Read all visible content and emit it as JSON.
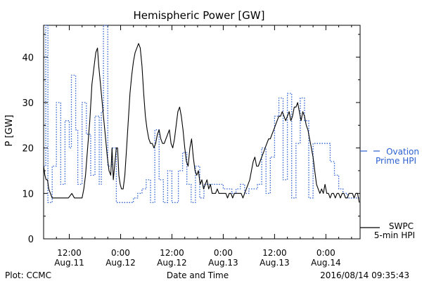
{
  "chart_data": {
    "type": "line",
    "title": "Hemispheric Power [GW]",
    "xlabel": "Date and Time",
    "ylabel": "P [GW]",
    "ylim": [
      0,
      47
    ],
    "yticks": [
      0,
      10,
      20,
      30,
      40
    ],
    "xlim_hours_label": "2016-08-11 06:00 to 2016-08-14 09:35",
    "xticks": [
      {
        "t": 12,
        "time": "12:00",
        "date": "Aug.11"
      },
      {
        "t": 24,
        "time": "0:00",
        "date": "Aug.12"
      },
      {
        "t": 36,
        "time": "12:00",
        "date": "Aug.12"
      },
      {
        "t": 48,
        "time": "0:00",
        "date": "Aug.13"
      },
      {
        "t": 60,
        "time": "12:00",
        "date": "Aug.13"
      },
      {
        "t": 72,
        "time": "0:00",
        "date": "Aug.14"
      }
    ],
    "series": [
      {
        "name": "SWPC 5-min HPI",
        "style": "solid",
        "color": "#000000",
        "points": [
          [
            6.0,
            16
          ],
          [
            6.3,
            14
          ],
          [
            6.6,
            13
          ],
          [
            6.9,
            13
          ],
          [
            7.2,
            11
          ],
          [
            7.6,
            10
          ],
          [
            8.0,
            9
          ],
          [
            8.8,
            9
          ],
          [
            9.8,
            9
          ],
          [
            10.8,
            9
          ],
          [
            11.8,
            9
          ],
          [
            12.6,
            10
          ],
          [
            13.2,
            9
          ],
          [
            13.8,
            9
          ],
          [
            14.6,
            9
          ],
          [
            15.0,
            9
          ],
          [
            15.4,
            11
          ],
          [
            15.8,
            14
          ],
          [
            16.3,
            20
          ],
          [
            16.8,
            26
          ],
          [
            17.3,
            34
          ],
          [
            17.8,
            38
          ],
          [
            18.2,
            41
          ],
          [
            18.6,
            42
          ],
          [
            18.9,
            38
          ],
          [
            19.3,
            34
          ],
          [
            19.7,
            30
          ],
          [
            20.1,
            26
          ],
          [
            20.5,
            22
          ],
          [
            20.9,
            18
          ],
          [
            21.3,
            15
          ],
          [
            21.7,
            14
          ],
          [
            22.0,
            20
          ],
          [
            22.3,
            13
          ],
          [
            22.6,
            16
          ],
          [
            23.0,
            20
          ],
          [
            23.3,
            20
          ],
          [
            23.6,
            14
          ],
          [
            23.9,
            12
          ],
          [
            24.2,
            11
          ],
          [
            24.6,
            11
          ],
          [
            25.0,
            14
          ],
          [
            25.4,
            20
          ],
          [
            25.8,
            26
          ],
          [
            26.2,
            32
          ],
          [
            26.6,
            36
          ],
          [
            27.0,
            39
          ],
          [
            27.4,
            41
          ],
          [
            27.8,
            42
          ],
          [
            28.2,
            43
          ],
          [
            28.6,
            42
          ],
          [
            29.0,
            38
          ],
          [
            29.4,
            32
          ],
          [
            29.8,
            27
          ],
          [
            30.2,
            24
          ],
          [
            30.6,
            22
          ],
          [
            31.0,
            21
          ],
          [
            31.4,
            21
          ],
          [
            31.8,
            20
          ],
          [
            32.2,
            21
          ],
          [
            32.6,
            23
          ],
          [
            33.0,
            24
          ],
          [
            33.4,
            22
          ],
          [
            33.8,
            21
          ],
          [
            34.2,
            21
          ],
          [
            34.6,
            22
          ],
          [
            35.0,
            23
          ],
          [
            35.4,
            24
          ],
          [
            35.8,
            21
          ],
          [
            36.2,
            20
          ],
          [
            36.6,
            22
          ],
          [
            37.0,
            25
          ],
          [
            37.4,
            28
          ],
          [
            37.8,
            29
          ],
          [
            38.2,
            27
          ],
          [
            38.6,
            24
          ],
          [
            39.0,
            20
          ],
          [
            39.4,
            17
          ],
          [
            39.8,
            16
          ],
          [
            40.2,
            20
          ],
          [
            40.6,
            22
          ],
          [
            41.0,
            18
          ],
          [
            41.4,
            15
          ],
          [
            41.8,
            14
          ],
          [
            42.2,
            15
          ],
          [
            42.6,
            12
          ],
          [
            43.0,
            13
          ],
          [
            43.4,
            11
          ],
          [
            43.8,
            12
          ],
          [
            44.2,
            13
          ],
          [
            44.6,
            11
          ],
          [
            45.0,
            12
          ],
          [
            45.4,
            10
          ],
          [
            45.8,
            10
          ],
          [
            46.2,
            10
          ],
          [
            46.6,
            11
          ],
          [
            47.0,
            10
          ],
          [
            47.4,
            10
          ],
          [
            47.8,
            10
          ],
          [
            48.2,
            10
          ],
          [
            48.6,
            10
          ],
          [
            49.0,
            9
          ],
          [
            49.4,
            10
          ],
          [
            49.8,
            10
          ],
          [
            50.2,
            9
          ],
          [
            50.6,
            10
          ],
          [
            51.0,
            10
          ],
          [
            51.4,
            10
          ],
          [
            51.8,
            10
          ],
          [
            52.2,
            10
          ],
          [
            52.6,
            9
          ],
          [
            53.0,
            10
          ],
          [
            53.4,
            11
          ],
          [
            53.8,
            12
          ],
          [
            54.2,
            13
          ],
          [
            54.6,
            15
          ],
          [
            55.0,
            17
          ],
          [
            55.4,
            18
          ],
          [
            55.8,
            16
          ],
          [
            56.2,
            16
          ],
          [
            56.6,
            17
          ],
          [
            57.0,
            18
          ],
          [
            57.4,
            19
          ],
          [
            57.8,
            20
          ],
          [
            58.2,
            21
          ],
          [
            58.6,
            22
          ],
          [
            59.0,
            22
          ],
          [
            59.4,
            23
          ],
          [
            59.8,
            24
          ],
          [
            60.2,
            25
          ],
          [
            60.6,
            26
          ],
          [
            61.0,
            27
          ],
          [
            61.4,
            27
          ],
          [
            61.8,
            28
          ],
          [
            62.2,
            27
          ],
          [
            62.6,
            26
          ],
          [
            63.0,
            27
          ],
          [
            63.4,
            28
          ],
          [
            63.8,
            26
          ],
          [
            64.2,
            27
          ],
          [
            64.6,
            29
          ],
          [
            65.0,
            29
          ],
          [
            65.4,
            30
          ],
          [
            65.8,
            28
          ],
          [
            66.2,
            26
          ],
          [
            66.6,
            28
          ],
          [
            67.0,
            27
          ],
          [
            67.4,
            25
          ],
          [
            67.8,
            24
          ],
          [
            68.2,
            22
          ],
          [
            68.6,
            20
          ],
          [
            69.0,
            18
          ],
          [
            69.4,
            15
          ],
          [
            69.8,
            12
          ],
          [
            70.2,
            11
          ],
          [
            70.6,
            10
          ],
          [
            71.0,
            11
          ],
          [
            71.4,
            10
          ],
          [
            71.8,
            12
          ],
          [
            72.2,
            10
          ],
          [
            72.6,
            10
          ],
          [
            73.0,
            9
          ],
          [
            73.4,
            10
          ],
          [
            73.8,
            10
          ],
          [
            74.2,
            9
          ],
          [
            74.6,
            10
          ],
          [
            75.0,
            10
          ],
          [
            75.4,
            9
          ],
          [
            75.8,
            10
          ],
          [
            76.2,
            10
          ],
          [
            76.6,
            9
          ],
          [
            77.0,
            9
          ],
          [
            77.4,
            10
          ],
          [
            77.8,
            10
          ],
          [
            78.2,
            10
          ],
          [
            78.6,
            9
          ],
          [
            79.0,
            10
          ],
          [
            79.4,
            10
          ],
          [
            79.8,
            8
          ]
        ]
      },
      {
        "name": "Ovation Prime HPI",
        "style": "dotted",
        "color": "#2a5fd0",
        "points": [
          [
            6.0,
            16
          ],
          [
            6.5,
            16
          ],
          [
            6.5,
            47
          ],
          [
            7.0,
            47
          ],
          [
            7.0,
            8
          ],
          [
            8.0,
            8
          ],
          [
            8.0,
            16
          ],
          [
            9.0,
            16
          ],
          [
            9.0,
            30
          ],
          [
            10.0,
            30
          ],
          [
            10.0,
            12
          ],
          [
            11.0,
            12
          ],
          [
            11.0,
            26
          ],
          [
            12.0,
            26
          ],
          [
            12.0,
            20
          ],
          [
            12.5,
            20
          ],
          [
            12.5,
            36
          ],
          [
            13.5,
            36
          ],
          [
            13.5,
            24
          ],
          [
            14.0,
            24
          ],
          [
            14.0,
            12
          ],
          [
            15.0,
            12
          ],
          [
            15.0,
            30
          ],
          [
            16.0,
            30
          ],
          [
            16.0,
            23
          ],
          [
            17.0,
            23
          ],
          [
            17.0,
            14
          ],
          [
            18.0,
            14
          ],
          [
            18.0,
            27
          ],
          [
            19.0,
            27
          ],
          [
            19.0,
            12
          ],
          [
            19.5,
            12
          ],
          [
            19.5,
            28
          ],
          [
            20.0,
            28
          ],
          [
            20.0,
            47
          ],
          [
            21.0,
            47
          ],
          [
            21.0,
            16
          ],
          [
            22.0,
            16
          ],
          [
            22.0,
            20
          ],
          [
            23.0,
            20
          ],
          [
            23.0,
            8
          ],
          [
            24.0,
            8
          ],
          [
            27.0,
            8
          ],
          [
            27.0,
            9
          ],
          [
            28.0,
            9
          ],
          [
            28.0,
            10
          ],
          [
            29.0,
            10
          ],
          [
            29.0,
            11
          ],
          [
            30.0,
            11
          ],
          [
            30.0,
            13
          ],
          [
            31.0,
            13
          ],
          [
            31.0,
            8
          ],
          [
            32.0,
            8
          ],
          [
            32.0,
            24
          ],
          [
            33.0,
            24
          ],
          [
            33.0,
            13
          ],
          [
            34.0,
            13
          ],
          [
            34.0,
            8
          ],
          [
            35.0,
            8
          ],
          [
            35.0,
            15
          ],
          [
            36.0,
            15
          ],
          [
            36.0,
            8
          ],
          [
            37.5,
            8
          ],
          [
            37.5,
            15
          ],
          [
            38.5,
            15
          ],
          [
            38.5,
            19
          ],
          [
            39.5,
            19
          ],
          [
            39.5,
            12
          ],
          [
            40.5,
            12
          ],
          [
            40.5,
            8
          ],
          [
            41.5,
            8
          ],
          [
            41.5,
            16
          ],
          [
            42.5,
            16
          ],
          [
            42.5,
            9
          ],
          [
            43.5,
            9
          ],
          [
            43.5,
            12
          ],
          [
            48.0,
            12
          ],
          [
            48.0,
            11
          ],
          [
            50.0,
            11
          ],
          [
            50.0,
            10
          ],
          [
            51.0,
            10
          ],
          [
            51.0,
            11
          ],
          [
            52.0,
            11
          ],
          [
            52.0,
            12
          ],
          [
            53.0,
            12
          ],
          [
            53.0,
            10
          ],
          [
            54.0,
            10
          ],
          [
            54.0,
            11
          ],
          [
            56.0,
            11
          ],
          [
            56.0,
            12
          ],
          [
            57.0,
            12
          ],
          [
            57.0,
            20
          ],
          [
            58.0,
            20
          ],
          [
            58.0,
            10
          ],
          [
            59.0,
            10
          ],
          [
            59.0,
            18
          ],
          [
            60.0,
            18
          ],
          [
            60.0,
            27
          ],
          [
            61.0,
            27
          ],
          [
            61.0,
            31
          ],
          [
            62.0,
            31
          ],
          [
            62.0,
            13
          ],
          [
            63.0,
            13
          ],
          [
            63.0,
            32
          ],
          [
            64.0,
            32
          ],
          [
            64.0,
            9
          ],
          [
            65.0,
            9
          ],
          [
            65.0,
            21
          ],
          [
            66.0,
            21
          ],
          [
            66.0,
            31
          ],
          [
            67.0,
            31
          ],
          [
            67.0,
            26
          ],
          [
            68.0,
            26
          ],
          [
            68.0,
            9
          ],
          [
            69.0,
            9
          ],
          [
            69.0,
            21
          ],
          [
            73.0,
            21
          ],
          [
            73.0,
            17
          ],
          [
            74.0,
            17
          ],
          [
            74.0,
            14
          ],
          [
            75.0,
            14
          ],
          [
            75.0,
            11
          ],
          [
            76.0,
            11
          ],
          [
            76.0,
            10
          ],
          [
            77.0,
            10
          ],
          [
            77.0,
            9
          ],
          [
            80.0,
            9
          ]
        ]
      }
    ],
    "legend": {
      "ovation_line1": "Ovation",
      "ovation_line2": "Prime HPI",
      "swpc_line1": "SWPC",
      "swpc_line2": "5-min HPI"
    },
    "footer_left": "Plot: CCMC",
    "footer_right": "2016/08/14 09:35:43"
  }
}
